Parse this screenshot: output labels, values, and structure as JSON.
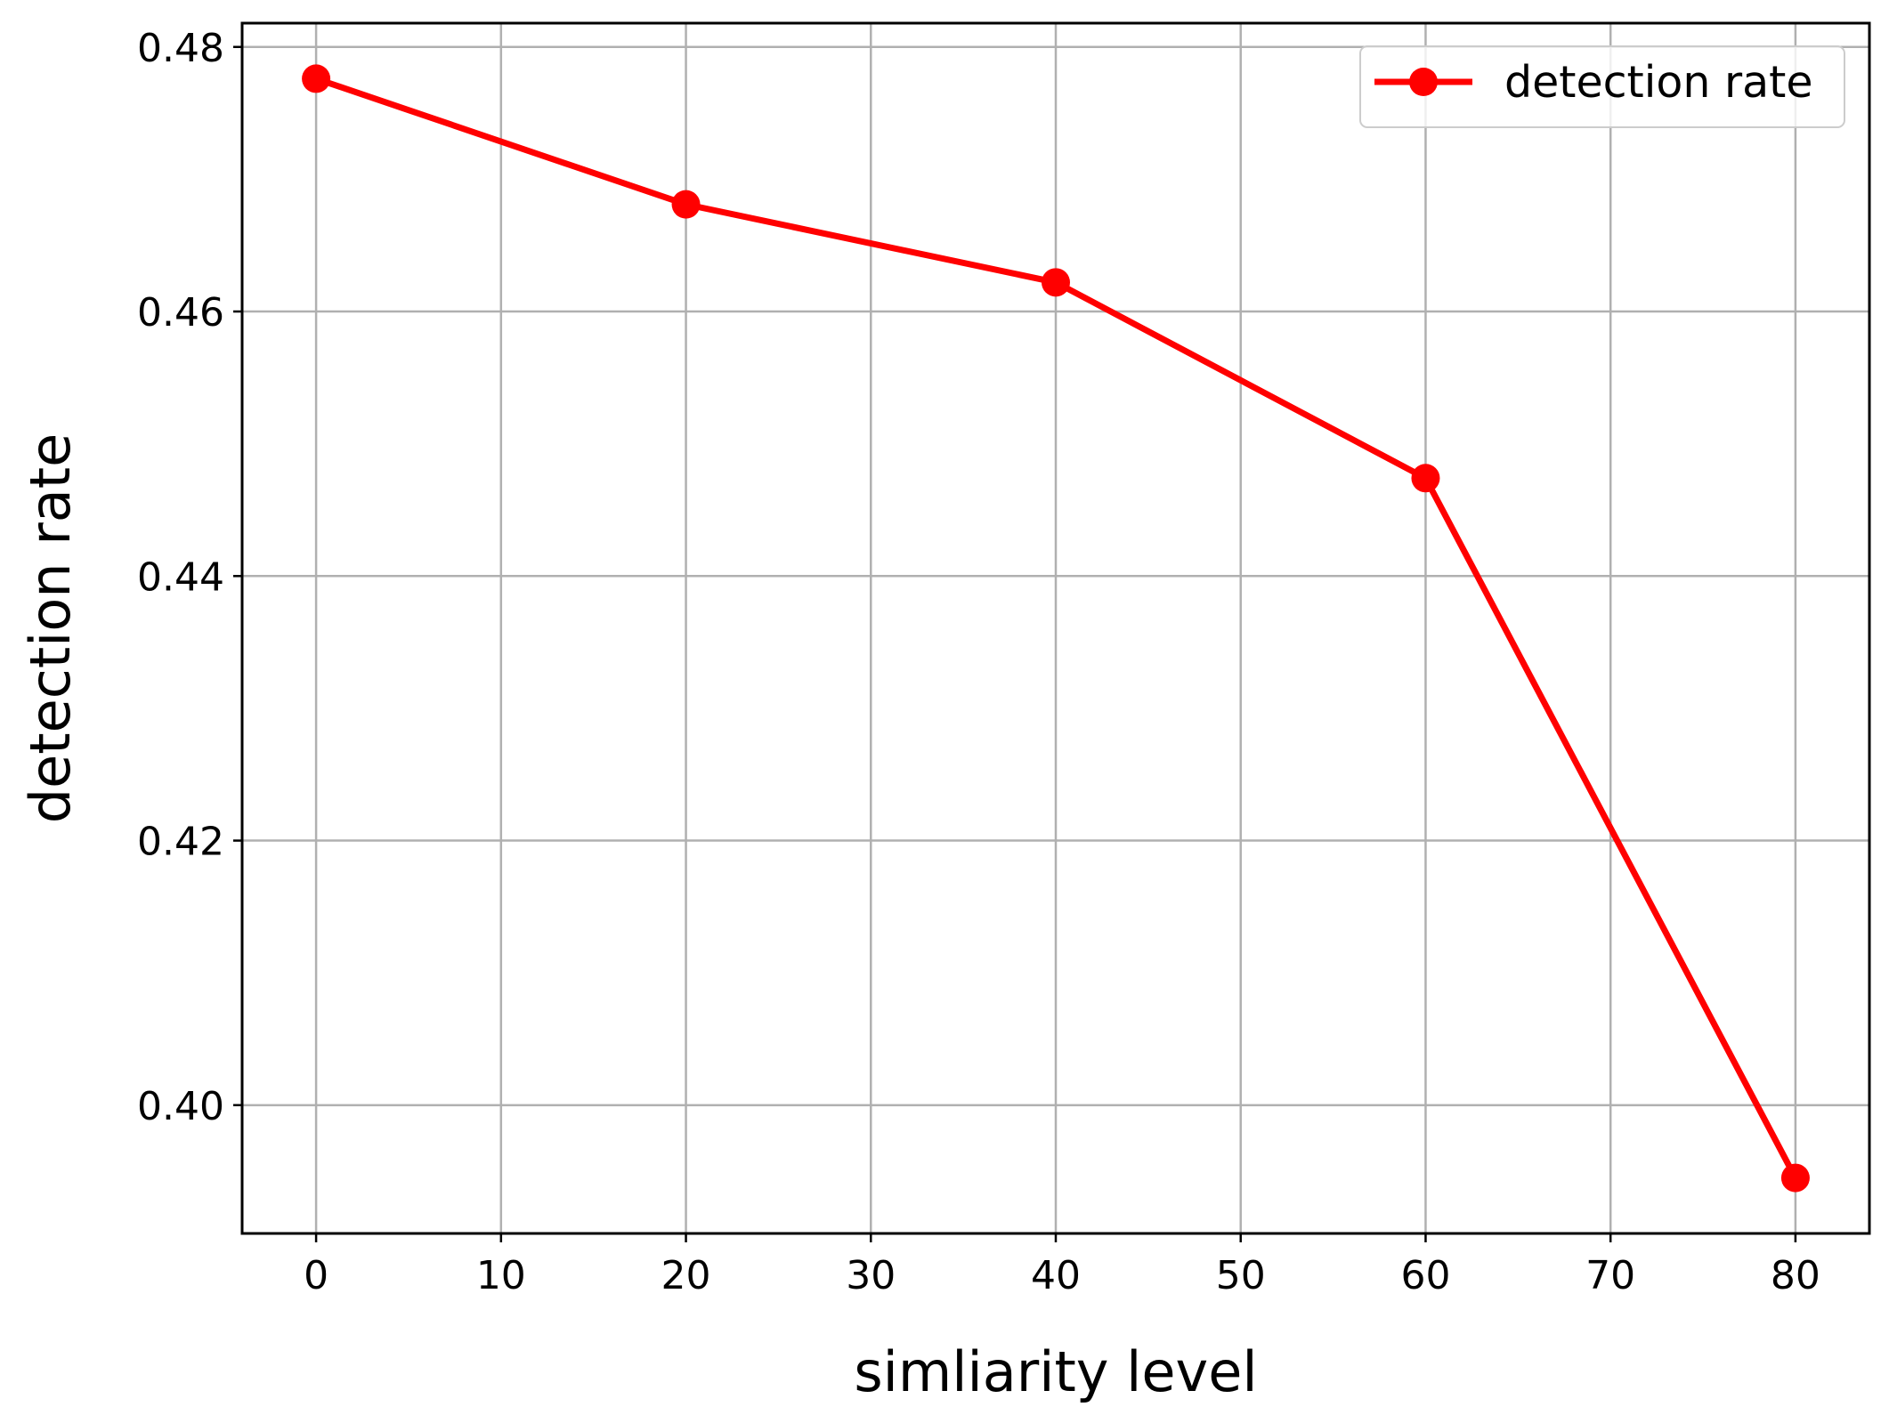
{
  "chart_data": {
    "type": "line",
    "title": "",
    "xlabel": "simliarity level",
    "ylabel": "detection rate",
    "x": [
      0,
      20,
      40,
      60,
      80
    ],
    "series": [
      {
        "name": "detection rate",
        "color": "#ff0000",
        "marker": "circle",
        "values": [
          0.4776,
          0.4681,
          0.4622,
          0.4474,
          0.3945
        ]
      }
    ],
    "xlim": [
      -4,
      84
    ],
    "ylim": [
      0.3903,
      0.4818
    ],
    "xticks": [
      0,
      10,
      20,
      30,
      40,
      50,
      60,
      70,
      80
    ],
    "xtick_labels": [
      "0",
      "10",
      "20",
      "30",
      "40",
      "50",
      "60",
      "70",
      "80"
    ],
    "yticks": [
      0.4,
      0.42,
      0.44,
      0.46,
      0.48
    ],
    "ytick_labels": [
      "0.40",
      "0.42",
      "0.44",
      "0.46",
      "0.48"
    ],
    "grid": true,
    "legend_position": "top-right"
  }
}
